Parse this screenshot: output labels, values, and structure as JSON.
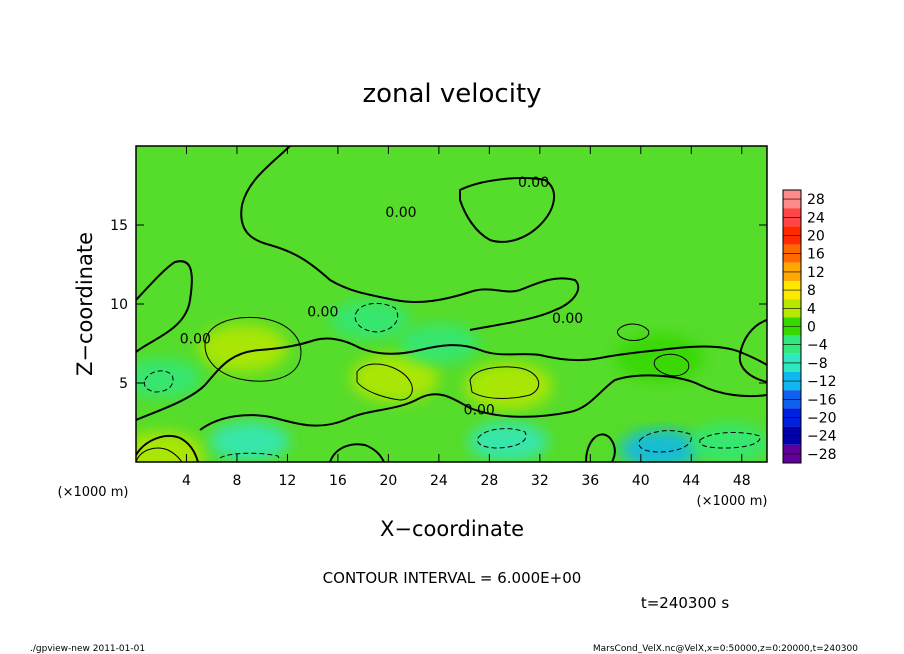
{
  "chart_data": {
    "type": "heatmap",
    "title": "zonal velocity",
    "xlabel": "X−coordinate",
    "ylabel": "Z−coordinate",
    "x_unit": "(×1000 m)",
    "y_unit": "(×1000 m)",
    "xlim": [
      0,
      50
    ],
    "ylim": [
      0,
      20
    ],
    "x_ticks": [
      4,
      8,
      12,
      16,
      20,
      24,
      28,
      32,
      36,
      40,
      44,
      48
    ],
    "y_ticks": [
      5,
      10,
      15
    ],
    "colorbar": {
      "levels": [
        28,
        24,
        20,
        16,
        12,
        8,
        4,
        0,
        -4,
        -8,
        -12,
        -16,
        -20,
        -24,
        -28
      ],
      "labels": [
        "28",
        "24",
        "20",
        "16",
        "12",
        "8",
        "4",
        "0",
        "−4",
        "−8",
        "−12",
        "−16",
        "−20",
        "−24",
        "−28"
      ],
      "colors": [
        "#ff8a8a",
        "#ff4545",
        "#ff2a00",
        "#ff6a00",
        "#ffa800",
        "#ffe800",
        "#b8e800",
        "#36d800",
        "#33e87a",
        "#30e8c0",
        "#10b8f0",
        "#1060f0",
        "#0020e0",
        "#0000a8",
        "#600098"
      ]
    },
    "background_value": 0,
    "features": [
      {
        "x": 8.5,
        "z": 7.2,
        "value": 6
      },
      {
        "x": 29.5,
        "z": 4.8,
        "value": 5
      },
      {
        "x": 20.5,
        "z": 5.3,
        "value": 4
      },
      {
        "x": 41.5,
        "z": 6.6,
        "value": 3
      },
      {
        "x": 18.5,
        "z": 9.0,
        "value": -4
      },
      {
        "x": 2.0,
        "z": 5.3,
        "value": -4
      },
      {
        "x": 2.0,
        "z": 0.4,
        "value": 4
      },
      {
        "x": 9.0,
        "z": 1.3,
        "value": -8
      },
      {
        "x": 29.5,
        "z": 1.3,
        "value": -7
      },
      {
        "x": 41.5,
        "z": 0.8,
        "value": -9
      },
      {
        "x": 47.0,
        "z": 1.2,
        "value": -4
      },
      {
        "x": 24.0,
        "z": 7.5,
        "value": -2
      }
    ],
    "contour_labels": [
      {
        "x": 31.5,
        "z": 17.4,
        "text": "0.00"
      },
      {
        "x": 21.0,
        "z": 15.5,
        "text": "0.00"
      },
      {
        "x": 14.8,
        "z": 9.2,
        "text": "0.00"
      },
      {
        "x": 34.2,
        "z": 8.8,
        "text": "0.00"
      },
      {
        "x": 4.7,
        "z": 7.5,
        "text": "0.00"
      },
      {
        "x": 27.2,
        "z": 3.0,
        "text": "0.00"
      }
    ]
  },
  "info": {
    "contour_interval": "CONTOUR INTERVAL = 6.000E+00",
    "time": "t=240300 s"
  },
  "footer": {
    "left": "./gpview-new  2011-01-01",
    "right": "MarsCond_VelX.nc@VelX,x=0:50000,z=0:20000,t=240300"
  }
}
